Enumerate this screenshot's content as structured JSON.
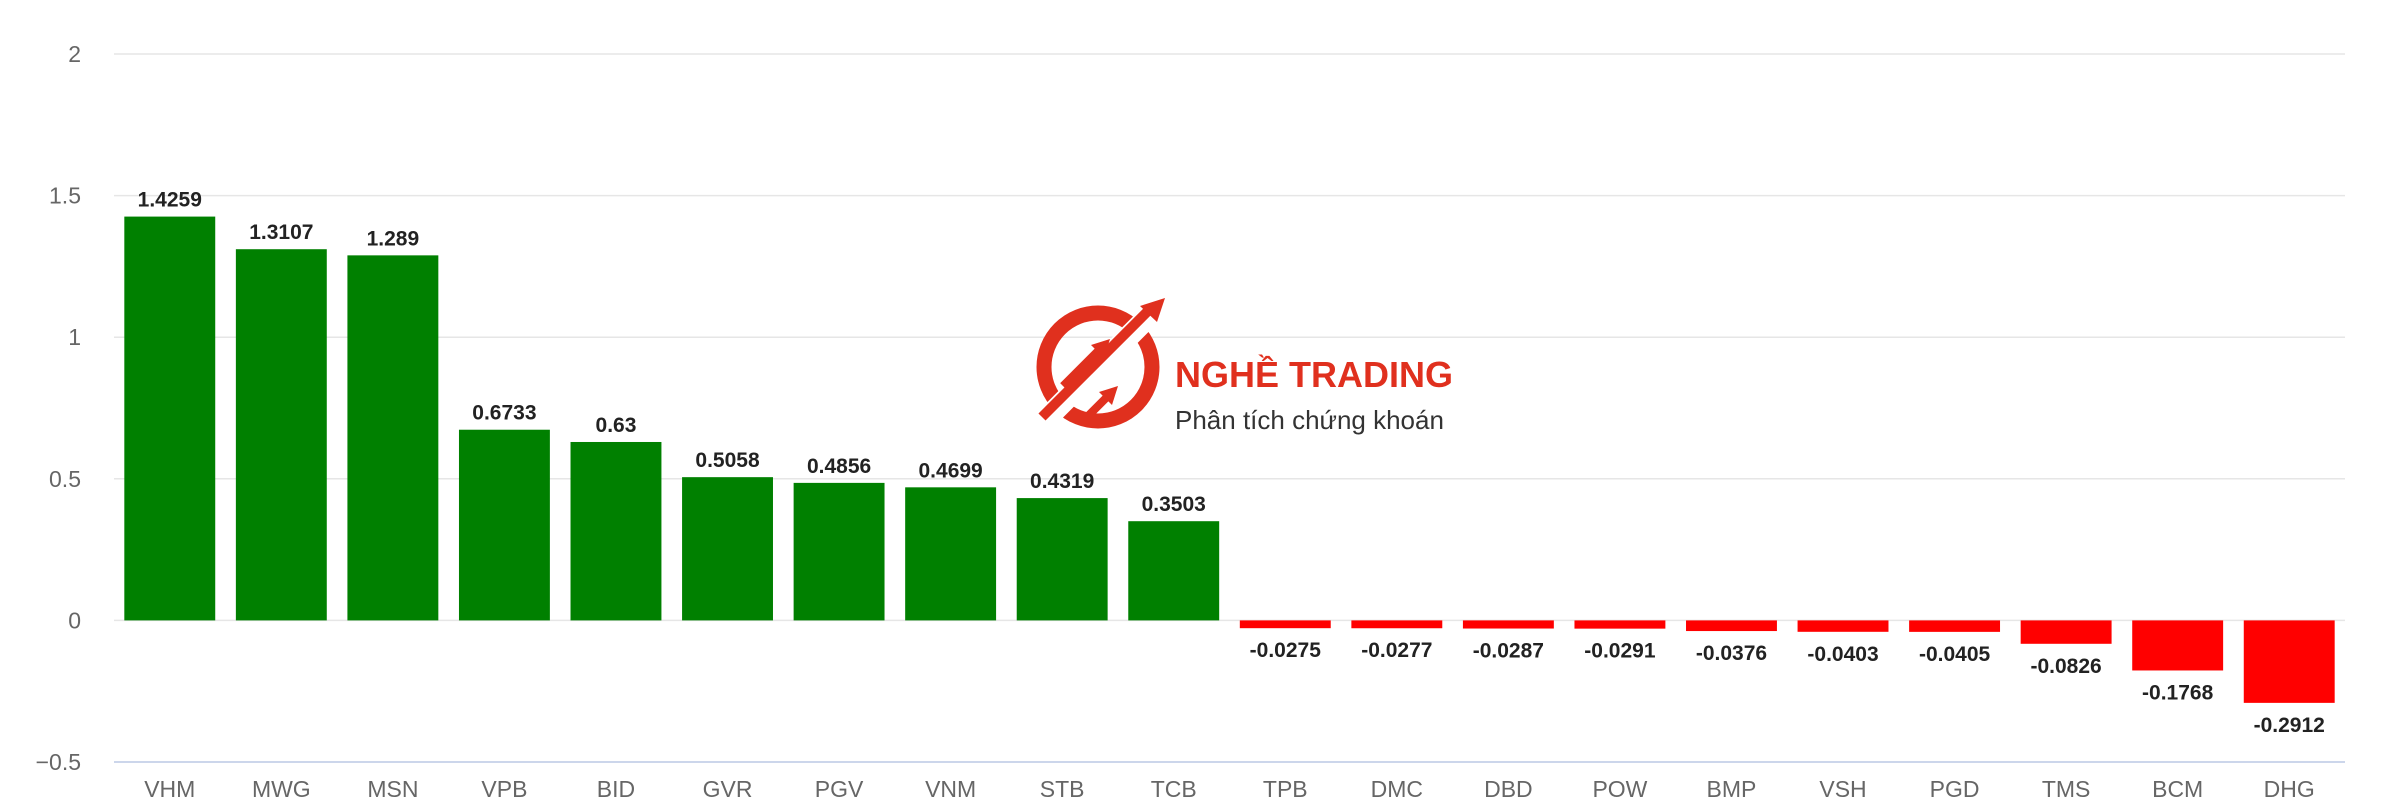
{
  "chart_data": {
    "type": "bar",
    "categories": [
      "VHM",
      "MWG",
      "MSN",
      "VPB",
      "BID",
      "GVR",
      "PGV",
      "VNM",
      "STB",
      "TCB",
      "TPB",
      "DMC",
      "DBD",
      "POW",
      "BMP",
      "VSH",
      "PGD",
      "TMS",
      "BCM",
      "DHG"
    ],
    "values": [
      1.4259,
      1.3107,
      1.289,
      0.6733,
      0.63,
      0.5058,
      0.4856,
      0.4699,
      0.4319,
      0.3503,
      -0.0275,
      -0.0277,
      -0.0287,
      -0.0291,
      -0.0376,
      -0.0403,
      -0.0405,
      -0.0826,
      -0.1768,
      -0.2912
    ],
    "value_labels": [
      "1.4259",
      "1.3107",
      "1.289",
      "0.6733",
      "0.63",
      "0.5058",
      "0.4856",
      "0.4699",
      "0.4319",
      "0.3503",
      "-0.0275",
      "-0.0277",
      "-0.0287",
      "-0.0291",
      "-0.0376",
      "-0.0403",
      "-0.0405",
      "-0.0826",
      "-0.1768",
      "-0.2912"
    ],
    "yticks": [
      2,
      1.5,
      1,
      0.5,
      0,
      -0.5
    ],
    "ytick_labels": [
      "2",
      "1.5",
      "1",
      "0.5",
      "0",
      "−0.5"
    ],
    "ylim": [
      -0.5,
      2
    ],
    "grid": true,
    "legend": "none",
    "colors": {
      "positive": "#008000",
      "negative": "#ff0000"
    }
  },
  "watermark": {
    "title": "NGHỀ TRADING",
    "subtitle": "Phân tích chứng khoán",
    "color": "#e0301e",
    "icon": "trading-logo-icon"
  }
}
